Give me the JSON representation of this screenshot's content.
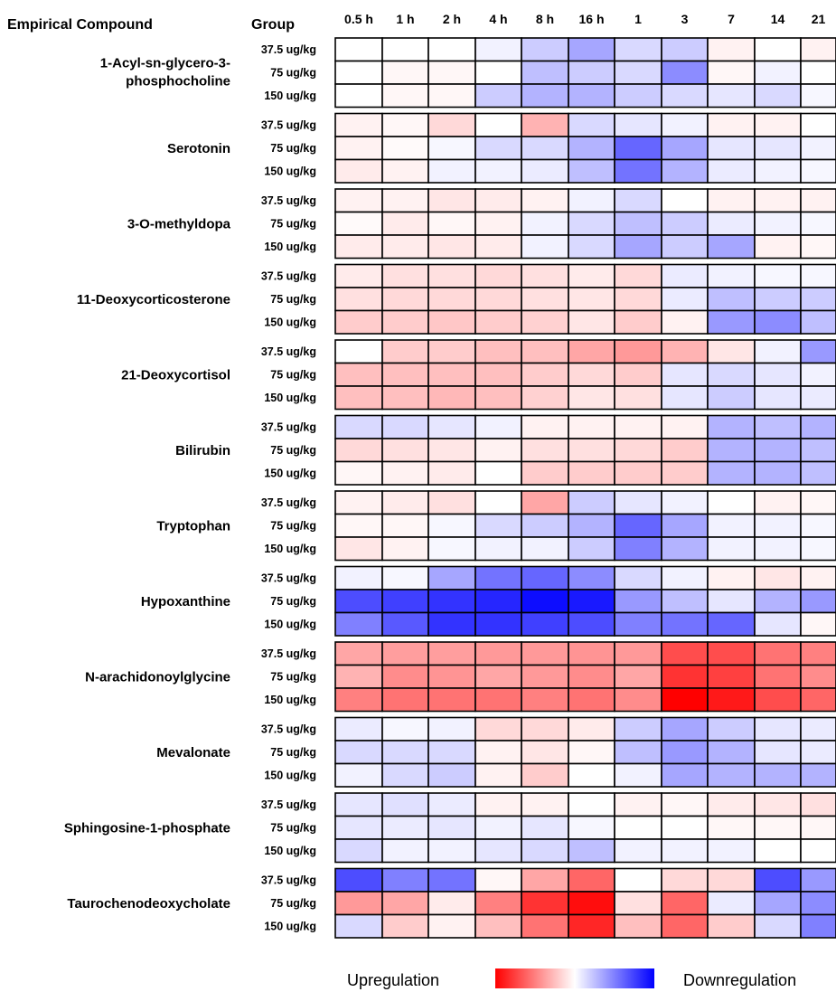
{
  "chart_data": {
    "type": "heatmap",
    "header_compound": "Empirical Compound",
    "header_group": "Group",
    "columns": [
      "0.5 h",
      "1 h",
      "2 h",
      "4 h",
      "8 h",
      "16 h",
      "1",
      "3",
      "7",
      "14",
      "21"
    ],
    "groups": [
      "37.5 ug/kg",
      "75 ug/kg",
      "150 ug/kg"
    ],
    "scale": "positive = upregulation (red), negative = downregulation (blue), range -1 to 1",
    "compounds": [
      {
        "name": "1-Acyl-sn-glycero-3-phosphocholine",
        "label_lines": [
          "1-Acyl-sn-glycero-3-",
          "phosphocholine"
        ],
        "values": [
          [
            0,
            0,
            0,
            -0.05,
            -0.2,
            -0.35,
            -0.15,
            -0.2,
            0.05,
            0,
            0.05
          ],
          [
            0,
            0.03,
            0.03,
            0,
            -0.25,
            -0.2,
            -0.15,
            -0.45,
            0.03,
            -0.05,
            0
          ],
          [
            0,
            0.03,
            0.03,
            -0.2,
            -0.3,
            -0.3,
            -0.2,
            -0.15,
            -0.1,
            -0.15,
            -0.03
          ]
        ]
      },
      {
        "name": "Serotonin",
        "label_lines": [
          "Serotonin"
        ],
        "values": [
          [
            0.05,
            0.03,
            0.15,
            0,
            0.3,
            -0.15,
            -0.1,
            -0.05,
            0.05,
            0.05,
            0
          ],
          [
            0.05,
            0.02,
            -0.03,
            -0.15,
            -0.15,
            -0.3,
            -0.6,
            -0.35,
            -0.1,
            -0.1,
            -0.05
          ],
          [
            0.08,
            0.05,
            -0.05,
            -0.05,
            -0.08,
            -0.25,
            -0.55,
            -0.3,
            -0.08,
            -0.05,
            -0.03
          ]
        ]
      },
      {
        "name": "3-O-methyldopa",
        "label_lines": [
          "3-O-methyldopa"
        ],
        "values": [
          [
            0.05,
            0.05,
            0.1,
            0.08,
            0.05,
            -0.05,
            -0.15,
            0,
            0.05,
            0.05,
            0.05
          ],
          [
            0.02,
            0.08,
            0.03,
            0.05,
            -0.05,
            -0.15,
            -0.25,
            -0.2,
            -0.08,
            -0.05,
            -0.03
          ],
          [
            0.08,
            0.08,
            0.1,
            0.08,
            -0.05,
            -0.15,
            -0.35,
            -0.2,
            -0.35,
            0.05,
            0.03
          ]
        ]
      },
      {
        "name": "11-Deoxycorticosterone",
        "label_lines": [
          "11-Deoxycorticosterone"
        ],
        "values": [
          [
            0.08,
            0.12,
            0.12,
            0.15,
            0.12,
            0.08,
            0.15,
            -0.08,
            -0.05,
            -0.03,
            -0.03
          ],
          [
            0.12,
            0.15,
            0.15,
            0.15,
            0.12,
            0.1,
            0.15,
            -0.08,
            -0.25,
            -0.2,
            -0.2
          ],
          [
            0.2,
            0.2,
            0.22,
            0.2,
            0.18,
            0.1,
            0.2,
            0.05,
            -0.4,
            -0.45,
            -0.25
          ]
        ]
      },
      {
        "name": "21-Deoxycortisol",
        "label_lines": [
          "21-Deoxycortisol"
        ],
        "values": [
          [
            0,
            0.2,
            0.2,
            0.25,
            0.25,
            0.35,
            0.4,
            0.3,
            0.1,
            -0.05,
            -0.4
          ],
          [
            0.25,
            0.25,
            0.25,
            0.25,
            0.2,
            0.15,
            0.2,
            -0.1,
            -0.15,
            -0.1,
            -0.05
          ],
          [
            0.25,
            0.25,
            0.28,
            0.25,
            0.18,
            0.1,
            0.12,
            -0.1,
            -0.2,
            -0.1,
            -0.08
          ]
        ]
      },
      {
        "name": "Bilirubin",
        "label_lines": [
          "Bilirubin"
        ],
        "values": [
          [
            -0.15,
            -0.15,
            -0.1,
            -0.05,
            0.05,
            0.05,
            0.05,
            0.05,
            -0.3,
            -0.25,
            -0.3
          ],
          [
            0.15,
            0.12,
            0.1,
            0.05,
            0.12,
            0.12,
            0.15,
            0.2,
            -0.3,
            -0.3,
            -0.25
          ],
          [
            0.03,
            0.05,
            0.08,
            0,
            0.2,
            0.2,
            0.2,
            0.2,
            -0.3,
            -0.3,
            -0.25
          ]
        ]
      },
      {
        "name": "Tryptophan",
        "label_lines": [
          "Tryptophan"
        ],
        "values": [
          [
            0.05,
            0.08,
            0.12,
            0,
            0.35,
            -0.2,
            -0.1,
            -0.05,
            0,
            0.05,
            0.03
          ],
          [
            0.03,
            0.03,
            -0.03,
            -0.15,
            -0.2,
            -0.3,
            -0.6,
            -0.35,
            -0.05,
            -0.05,
            -0.03
          ],
          [
            0.1,
            0.05,
            -0.03,
            -0.05,
            -0.05,
            -0.2,
            -0.5,
            -0.3,
            -0.05,
            -0.05,
            -0.03
          ]
        ]
      },
      {
        "name": "Hypoxanthine",
        "label_lines": [
          "Hypoxanthine"
        ],
        "values": [
          [
            -0.05,
            -0.03,
            -0.35,
            -0.55,
            -0.6,
            -0.45,
            -0.15,
            -0.05,
            0.05,
            0.1,
            0.05
          ],
          [
            -0.7,
            -0.75,
            -0.8,
            -0.85,
            -0.95,
            -0.9,
            -0.4,
            -0.25,
            -0.1,
            -0.3,
            -0.4
          ],
          [
            -0.5,
            -0.65,
            -0.8,
            -0.8,
            -0.75,
            -0.7,
            -0.5,
            -0.55,
            -0.6,
            -0.1,
            0.03
          ]
        ]
      },
      {
        "name": "N-arachidonoylglycine",
        "label_lines": [
          "N-arachidonoylglycine"
        ],
        "values": [
          [
            0.35,
            0.38,
            0.38,
            0.4,
            0.4,
            0.42,
            0.4,
            0.7,
            0.7,
            0.55,
            0.5
          ],
          [
            0.3,
            0.45,
            0.42,
            0.35,
            0.4,
            0.45,
            0.35,
            0.8,
            0.75,
            0.55,
            0.45
          ],
          [
            0.5,
            0.55,
            0.55,
            0.55,
            0.5,
            0.55,
            0.45,
            1.0,
            0.9,
            0.7,
            0.6
          ]
        ]
      },
      {
        "name": "Mevalonate",
        "label_lines": [
          "Mevalonate"
        ],
        "values": [
          [
            -0.08,
            -0.03,
            -0.05,
            0.15,
            0.15,
            0.08,
            -0.2,
            -0.35,
            -0.2,
            -0.1,
            -0.08
          ],
          [
            -0.15,
            -0.15,
            -0.15,
            0.05,
            0.1,
            0.03,
            -0.25,
            -0.4,
            -0.3,
            -0.1,
            -0.08
          ],
          [
            -0.05,
            -0.15,
            -0.2,
            0.05,
            0.2,
            0,
            -0.05,
            -0.35,
            -0.3,
            -0.3,
            -0.3
          ]
        ]
      },
      {
        "name": "Sphingosine-1-phosphate",
        "label_lines": [
          "Sphingosine-1-phosphate"
        ],
        "values": [
          [
            -0.1,
            -0.12,
            -0.08,
            0.05,
            0.05,
            0,
            0.05,
            0.03,
            0.08,
            0.1,
            0.12
          ],
          [
            -0.1,
            -0.08,
            -0.1,
            -0.05,
            -0.1,
            -0.03,
            0,
            0,
            0.03,
            0.03,
            0.03
          ],
          [
            -0.15,
            -0.05,
            -0.05,
            -0.1,
            -0.15,
            -0.25,
            -0.05,
            -0.05,
            -0.05,
            0,
            0
          ]
        ]
      },
      {
        "name": "Taurochenodeoxycholate",
        "label_lines": [
          "Taurochenodeoxycholate"
        ],
        "values": [
          [
            -0.7,
            -0.5,
            -0.55,
            0.03,
            0.35,
            0.6,
            0,
            0.15,
            0.15,
            -0.7,
            -0.4
          ],
          [
            0.4,
            0.35,
            0.08,
            0.5,
            0.8,
            0.95,
            0.12,
            0.6,
            -0.08,
            -0.35,
            -0.45
          ],
          [
            -0.15,
            0.2,
            0.05,
            0.25,
            0.55,
            0.85,
            0.25,
            0.6,
            0.2,
            -0.15,
            -0.5
          ]
        ]
      }
    ],
    "legend": {
      "left": "Upregulation",
      "right": "Downregulation"
    }
  },
  "colors": {
    "up": "#ff0000",
    "down": "#0000ff",
    "neutral": "#ffffff",
    "border": "#000000"
  }
}
